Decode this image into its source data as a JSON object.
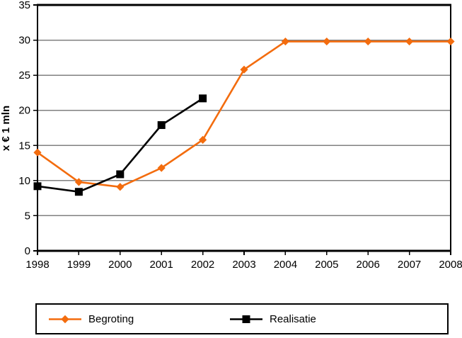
{
  "chart_data": {
    "type": "line",
    "title": "",
    "xlabel": "",
    "ylabel": "x € 1 mln",
    "categories": [
      "1998",
      "1999",
      "2000",
      "2001",
      "2002",
      "2003",
      "2004",
      "2005",
      "2006",
      "2007",
      "2008"
    ],
    "ylim": [
      0,
      35
    ],
    "yticks": [
      0,
      5,
      10,
      15,
      20,
      25,
      30,
      35
    ],
    "grid": true,
    "legend_position": "bottom",
    "series": [
      {
        "name": "Begroting",
        "color": "#F36C0E",
        "marker": "diamond",
        "values": [
          14.0,
          9.8,
          9.1,
          11.8,
          15.8,
          25.8,
          29.8,
          29.8,
          29.8,
          29.8,
          29.8
        ]
      },
      {
        "name": "Realisatie",
        "color": "#000000",
        "marker": "square",
        "values": [
          9.2,
          8.4,
          10.9,
          17.9,
          21.7,
          null,
          null,
          null,
          null,
          null,
          null
        ]
      }
    ]
  },
  "colors": {
    "background": "#FFFFFF",
    "grid": "#808080",
    "axis": "#000000",
    "legend_border": "#000000"
  }
}
